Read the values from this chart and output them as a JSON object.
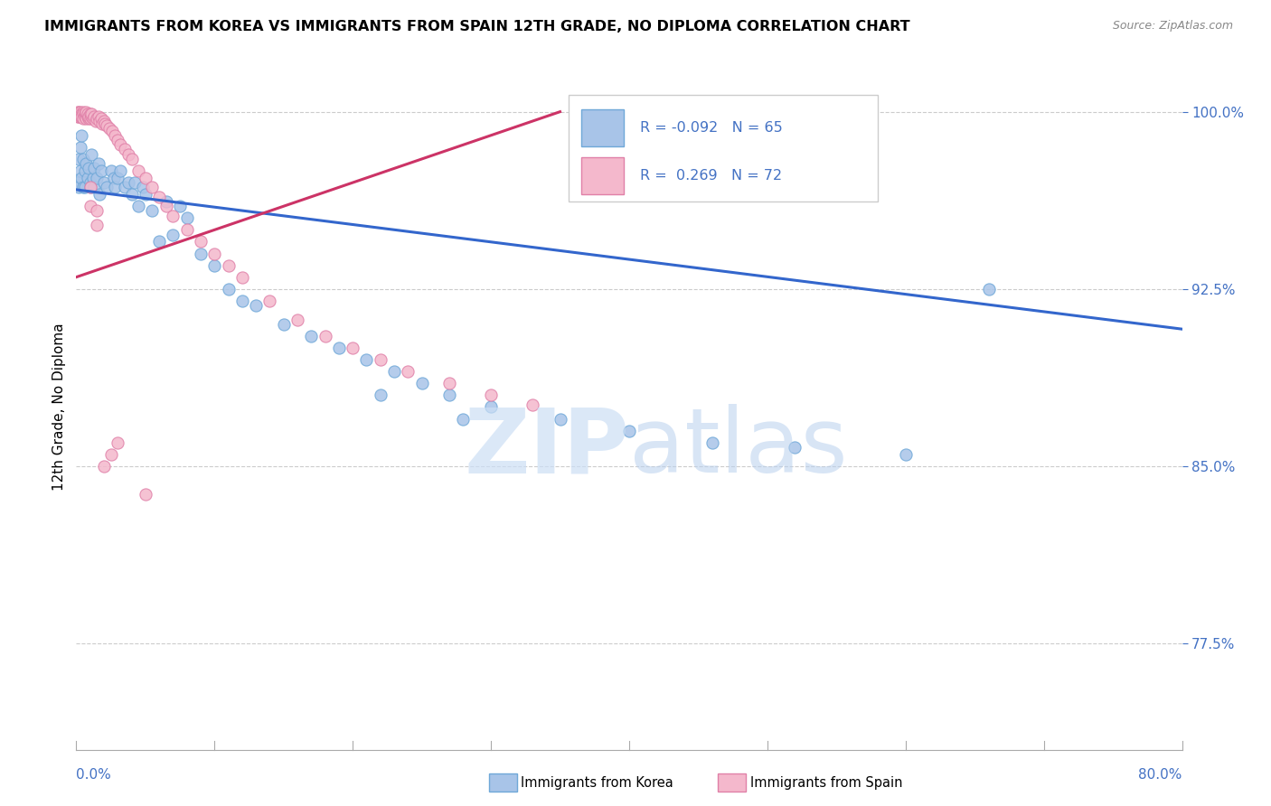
{
  "title": "IMMIGRANTS FROM KOREA VS IMMIGRANTS FROM SPAIN 12TH GRADE, NO DIPLOMA CORRELATION CHART",
  "source": "Source: ZipAtlas.com",
  "ylabel": "12th Grade, No Diploma",
  "yticks": [
    "100.0%",
    "92.5%",
    "85.0%",
    "77.5%"
  ],
  "ytick_vals": [
    1.0,
    0.925,
    0.85,
    0.775
  ],
  "xlim": [
    0.0,
    0.8
  ],
  "ylim": [
    0.73,
    1.02
  ],
  "korea_scatter_color": "#a8c4e8",
  "korea_edge_color": "#6fa8d8",
  "spain_scatter_color": "#f4b8cc",
  "spain_edge_color": "#e080a8",
  "korea_line_color": "#3366cc",
  "spain_line_color": "#cc3366",
  "korea_R": "-0.092",
  "korea_N": "65",
  "spain_R": "0.269",
  "spain_N": "72",
  "korea_x": [
    0.001,
    0.002,
    0.002,
    0.003,
    0.003,
    0.004,
    0.004,
    0.005,
    0.005,
    0.006,
    0.006,
    0.007,
    0.008,
    0.009,
    0.01,
    0.01,
    0.011,
    0.012,
    0.013,
    0.013,
    0.015,
    0.016,
    0.017,
    0.018,
    0.02,
    0.022,
    0.025,
    0.027,
    0.028,
    0.03,
    0.032,
    0.035,
    0.038,
    0.04,
    0.042,
    0.045,
    0.048,
    0.05,
    0.055,
    0.06,
    0.065,
    0.07,
    0.075,
    0.08,
    0.09,
    0.1,
    0.11,
    0.12,
    0.13,
    0.15,
    0.17,
    0.19,
    0.21,
    0.23,
    0.25,
    0.27,
    0.3,
    0.35,
    0.4,
    0.46,
    0.52,
    0.6,
    0.66,
    0.22,
    0.28
  ],
  "korea_y": [
    0.97,
    0.98,
    0.968,
    0.975,
    0.985,
    0.972,
    0.99,
    0.968,
    0.98,
    0.975,
    0.968,
    0.978,
    0.972,
    0.976,
    0.97,
    0.968,
    0.982,
    0.972,
    0.976,
    0.968,
    0.972,
    0.978,
    0.965,
    0.975,
    0.97,
    0.968,
    0.975,
    0.972,
    0.968,
    0.972,
    0.975,
    0.968,
    0.97,
    0.965,
    0.97,
    0.96,
    0.968,
    0.965,
    0.958,
    0.945,
    0.962,
    0.948,
    0.96,
    0.955,
    0.94,
    0.935,
    0.925,
    0.92,
    0.918,
    0.91,
    0.905,
    0.9,
    0.895,
    0.89,
    0.885,
    0.88,
    0.875,
    0.87,
    0.865,
    0.86,
    0.858,
    0.855,
    0.925,
    0.88,
    0.87
  ],
  "spain_x": [
    0.001,
    0.001,
    0.002,
    0.002,
    0.003,
    0.003,
    0.003,
    0.004,
    0.004,
    0.005,
    0.005,
    0.005,
    0.006,
    0.006,
    0.007,
    0.007,
    0.007,
    0.008,
    0.008,
    0.009,
    0.009,
    0.01,
    0.01,
    0.011,
    0.011,
    0.012,
    0.013,
    0.014,
    0.015,
    0.016,
    0.017,
    0.018,
    0.019,
    0.02,
    0.021,
    0.022,
    0.024,
    0.026,
    0.028,
    0.03,
    0.032,
    0.035,
    0.038,
    0.04,
    0.045,
    0.05,
    0.055,
    0.06,
    0.065,
    0.07,
    0.08,
    0.09,
    0.1,
    0.11,
    0.12,
    0.14,
    0.16,
    0.18,
    0.2,
    0.22,
    0.24,
    0.27,
    0.3,
    0.33,
    0.01,
    0.01,
    0.015,
    0.015,
    0.05,
    0.03,
    0.02,
    0.025
  ],
  "spain_y": [
    0.998,
    1.0,
    0.998,
    1.0,
    0.999,
    0.998,
    1.0,
    0.999,
    0.998,
    1.0,
    0.999,
    0.997,
    0.999,
    0.998,
    0.999,
    0.997,
    1.0,
    0.998,
    0.999,
    0.997,
    0.998,
    0.999,
    0.997,
    0.998,
    0.999,
    0.997,
    0.998,
    0.996,
    0.997,
    0.998,
    0.996,
    0.997,
    0.995,
    0.996,
    0.995,
    0.994,
    0.993,
    0.992,
    0.99,
    0.988,
    0.986,
    0.984,
    0.982,
    0.98,
    0.975,
    0.972,
    0.968,
    0.964,
    0.96,
    0.956,
    0.95,
    0.945,
    0.94,
    0.935,
    0.93,
    0.92,
    0.912,
    0.905,
    0.9,
    0.895,
    0.89,
    0.885,
    0.88,
    0.876,
    0.968,
    0.96,
    0.958,
    0.952,
    0.838,
    0.86,
    0.85,
    0.855
  ],
  "korea_line_x": [
    0.0,
    0.8
  ],
  "korea_line_y": [
    0.967,
    0.908
  ],
  "spain_line_x": [
    0.0,
    0.35
  ],
  "spain_line_y": [
    0.93,
    1.0
  ],
  "watermark_zip_color": "#ccdff5",
  "watermark_atlas_color": "#b8d0ee",
  "background_color": "#ffffff",
  "grid_color": "#cccccc",
  "title_fontsize": 11.5,
  "source_fontsize": 9,
  "axis_label_color": "#4472c4",
  "legend_text_color": "#4472c4"
}
